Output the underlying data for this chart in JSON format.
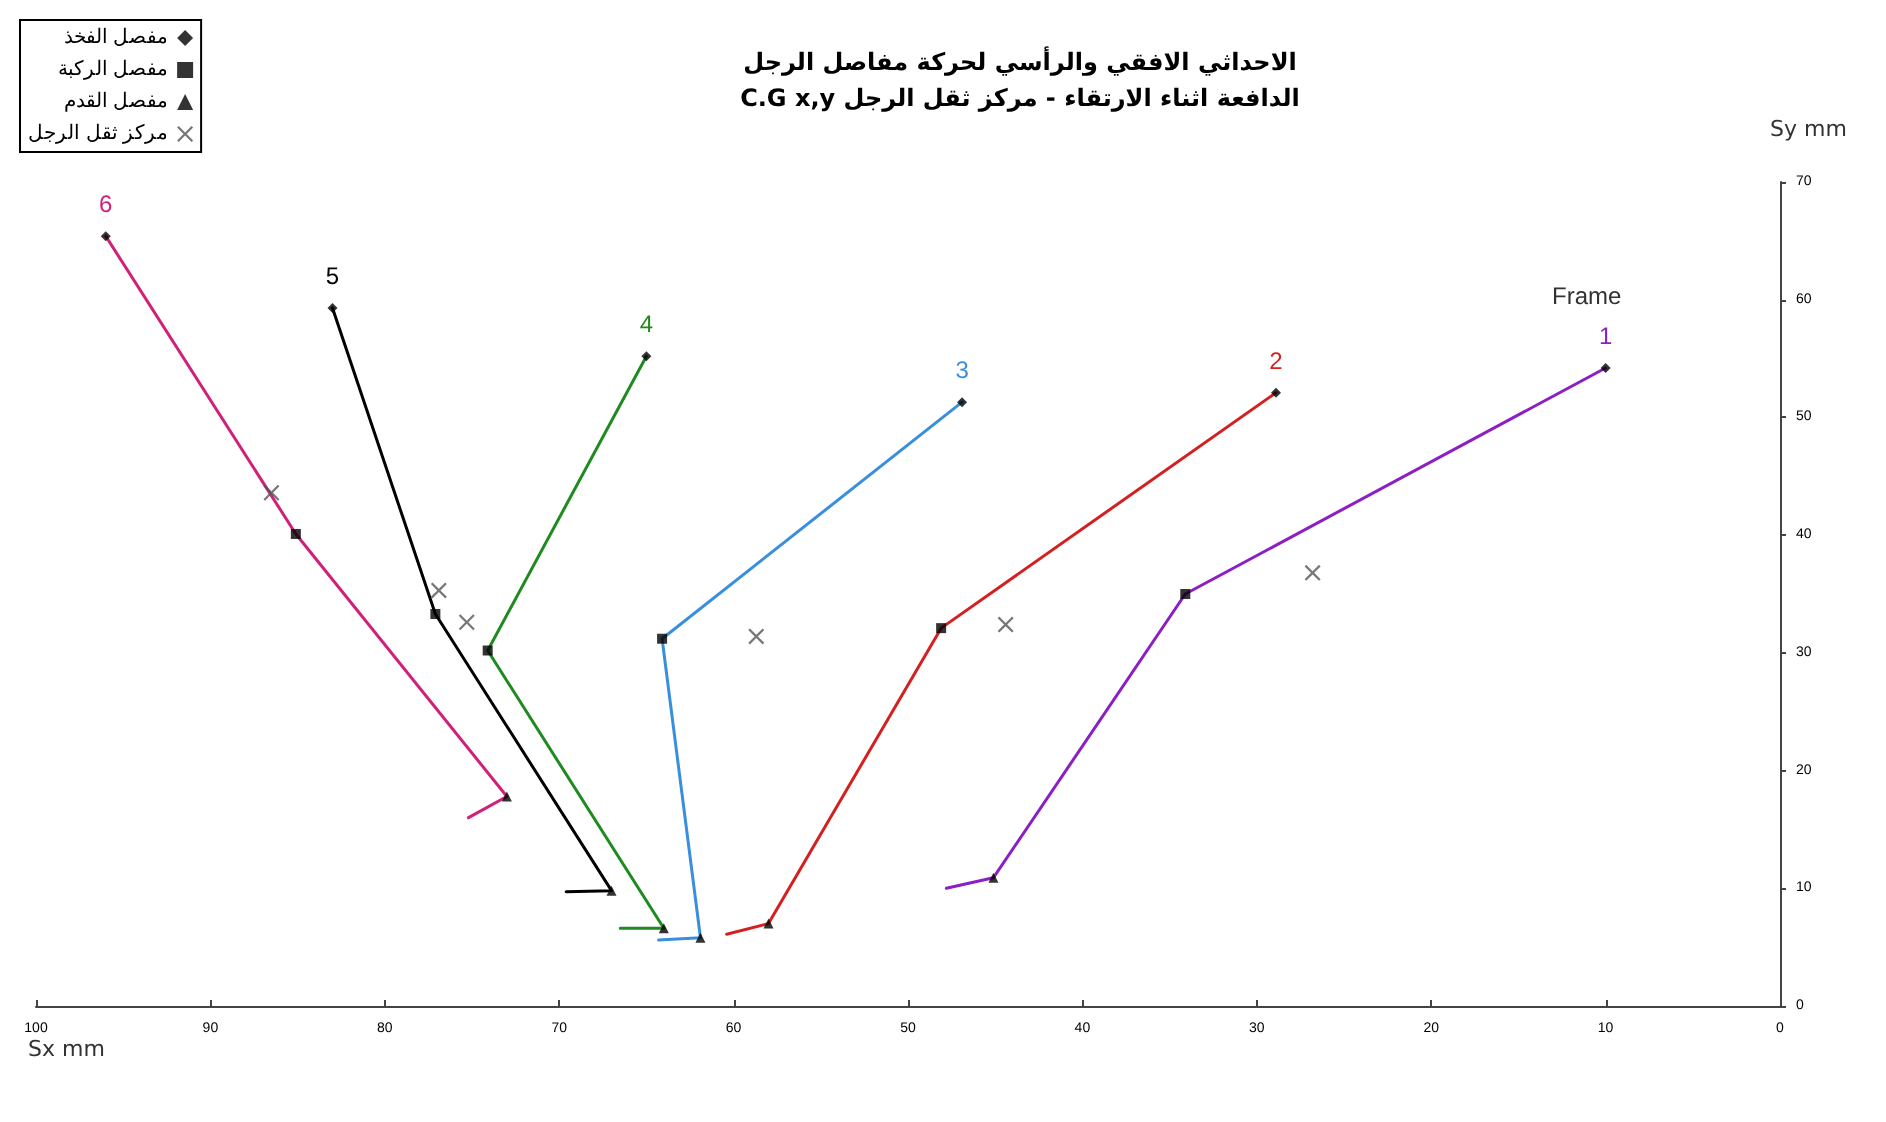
{
  "chart_data": {
    "type": "line",
    "title": "الاحداثي الافقي والرأسي لحركة  مفاصل الرجل",
    "subtitle": "الدافعة اثناء الارتقاء - مركز ثقل الرجل C.G x,y",
    "xlabel": "Sx mm",
    "ylabel": "Sy mm",
    "xlim": [
      100,
      0
    ],
    "xticks": [
      100,
      90,
      80,
      70,
      60,
      50,
      40,
      30,
      20,
      10,
      0
    ],
    "ylim": [
      0,
      70
    ],
    "yticks": [
      0,
      10,
      20,
      30,
      40,
      50,
      60,
      70
    ],
    "grid": false,
    "legend": "top left",
    "marker": "none",
    "line_style": "solid",
    "series": [
      {
        "name": "1",
        "color": "#8b1fc4",
        "x": [
          10,
          34.1,
          45.1,
          47.8
        ],
        "values": [
          54.2,
          35,
          10.9,
          10.0
        ]
      },
      {
        "name": "2",
        "color": "#d42020",
        "x": [
          28.9,
          48.1,
          58,
          60.4
        ],
        "values": [
          52.1,
          32.1,
          7,
          6.1
        ]
      },
      {
        "name": "3",
        "color": "#3a8fdc",
        "x": [
          46.9,
          64.1,
          61.9,
          64.3
        ],
        "values": [
          51.3,
          31.2,
          5.8,
          5.6
        ]
      },
      {
        "name": "4",
        "color": "#1f8a1f",
        "x": [
          65,
          74.1,
          64,
          66.5
        ],
        "values": [
          55.2,
          30.2,
          6.6,
          6.6
        ]
      },
      {
        "name": "5",
        "color": "#000000",
        "x": [
          83,
          77.1,
          67,
          69.6
        ],
        "values": [
          59.3,
          33.3,
          9.8,
          9.7
        ]
      },
      {
        "name": "6",
        "color": "#d0207a",
        "x": [
          96,
          85.1,
          73,
          75.2
        ],
        "values": [
          65.4,
          40.1,
          17.8,
          16
        ]
      },
      {
        "type": "scatter",
        "name": "مفصل الفخذ",
        "marker": "diamond",
        "color": "#000000",
        "x": [
          10,
          28.9,
          46.9,
          65,
          83,
          96
        ],
        "values": [
          54.2,
          52.1,
          51.3,
          55.2,
          59.3,
          65.4
        ]
      },
      {
        "type": "scatter",
        "name": "مفصل الركبة",
        "marker": "square",
        "color": "#000000",
        "x": [
          34.1,
          48.1,
          64.1,
          74.1,
          77.1,
          85.1
        ],
        "values": [
          35,
          32.1,
          31.2,
          30.2,
          33.3,
          40.1
        ]
      },
      {
        "type": "scatter",
        "name": "مفصل القدم",
        "marker": "triangle",
        "color": "#000000",
        "x": [
          45.1,
          58,
          61.9,
          64,
          67,
          73
        ],
        "values": [
          10.9,
          7,
          5.8,
          6.6,
          9.8,
          17.8
        ]
      },
      {
        "type": "scatter",
        "name": "مركز ثقل الرجل",
        "marker": "cross",
        "color": "#555555",
        "x": [
          26.8,
          44.4,
          58.7,
          75.3,
          76.9,
          86.5
        ],
        "values": [
          36.8,
          32.4,
          31.4,
          32.6,
          35.3,
          43.6
        ]
      }
    ],
    "annotations": [
      "Frame"
    ]
  }
}
